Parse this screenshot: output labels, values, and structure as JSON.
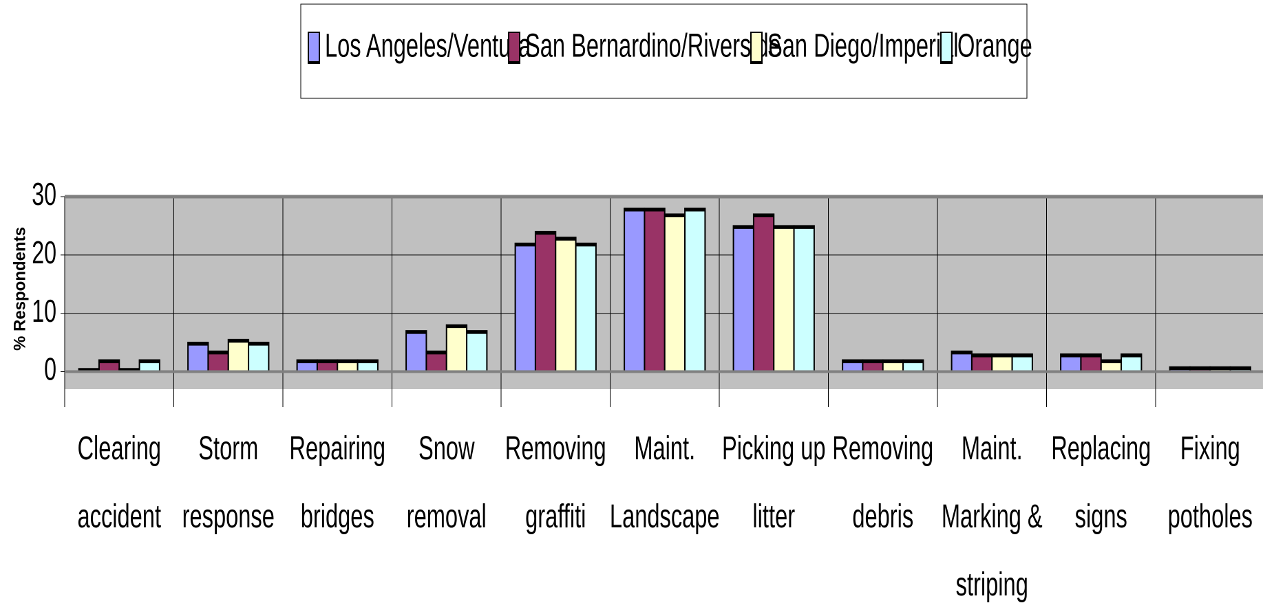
{
  "chart_data": {
    "type": "bar",
    "y_label": "% Respondents",
    "categories": [
      "Clearing accident",
      "Storm response",
      "Repairing bridges",
      "Snow removal",
      "Removing graffiti",
      "Maint. Landscape",
      "Picking up litter",
      "Removing debris",
      "Maint. Marking & striping",
      "Replacing signs",
      "Fixing potholes"
    ],
    "series": [
      {
        "name": "Los Angeles/Ventura",
        "color": "#9999ff",
        "values": [
          0.5,
          5,
          2,
          7,
          22,
          28,
          25,
          2,
          3.5,
          3,
          0.8
        ]
      },
      {
        "name": "San Bernardino/Riverside",
        "color": "#993366",
        "values": [
          2,
          3.5,
          2,
          3.5,
          24,
          28,
          27,
          2,
          3,
          3,
          0.8
        ]
      },
      {
        "name": "San Diego/Imperial",
        "color": "#ffffcc",
        "values": [
          0.5,
          5.5,
          2,
          8,
          23,
          27,
          25,
          2,
          3,
          2,
          0.8
        ]
      },
      {
        "name": "Orange",
        "color": "#ccffff",
        "values": [
          2,
          5,
          2,
          7,
          22,
          28,
          25,
          2,
          3,
          3,
          0.8
        ]
      }
    ],
    "ylim": [
      -3,
      30
    ],
    "yticks": [
      0,
      10,
      20,
      30
    ],
    "grid": true,
    "legend": "top"
  }
}
